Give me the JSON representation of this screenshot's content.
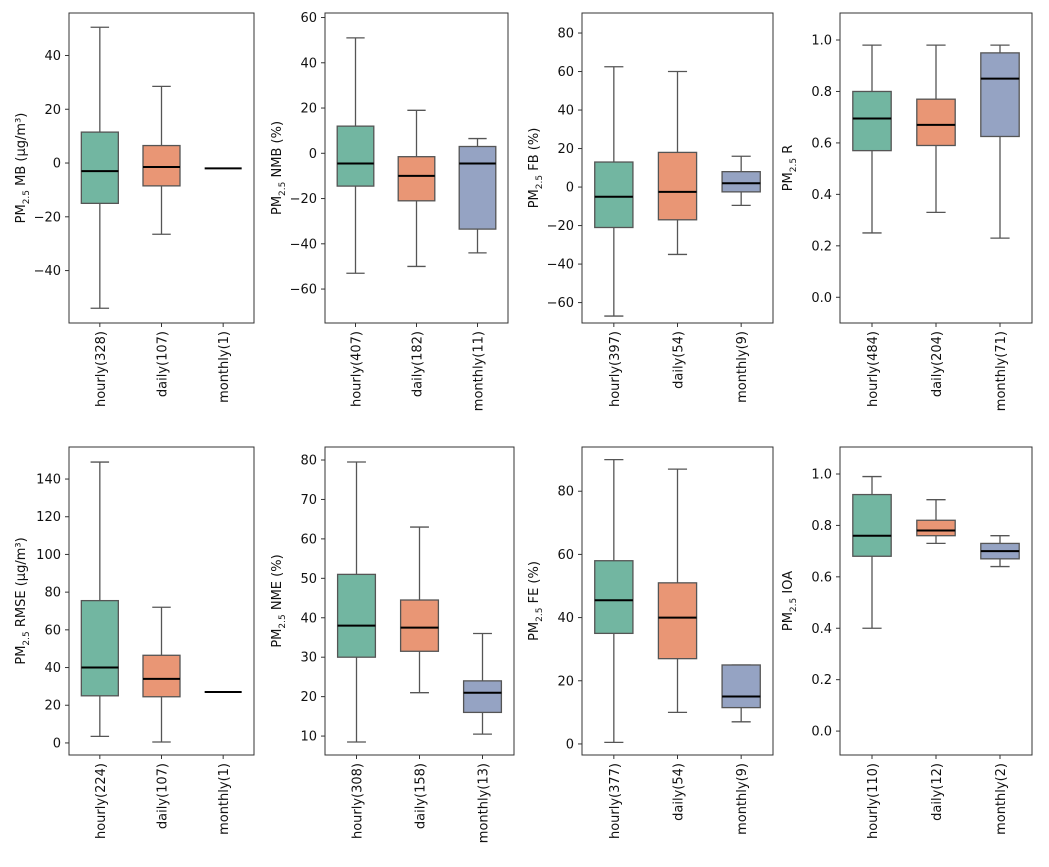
{
  "chart_data": [
    {
      "type": "box",
      "ylabel": {
        "prefix": "PM",
        "sub": "2.5",
        "rest": " MB (μg/m³)"
      },
      "ylim": [
        -59.5,
        55.8
      ],
      "yticks": [
        -40,
        -20,
        0,
        20,
        40
      ],
      "categories": [
        "hourly(328)",
        "daily(107)",
        "monthly(1)"
      ],
      "boxes": [
        {
          "whislo": -54,
          "q1": -15,
          "med": -3,
          "q3": 11.5,
          "whishi": 50.5
        },
        {
          "whislo": -26.5,
          "q1": -8.5,
          "med": -1.5,
          "q3": 6.5,
          "whishi": 28.5
        },
        {
          "whislo": -2,
          "q1": -2,
          "med": -2,
          "q3": -2,
          "whishi": -2
        }
      ]
    },
    {
      "type": "box",
      "ylabel": {
        "prefix": "PM",
        "sub": "2.5",
        "rest": " NMB (%)"
      },
      "ylim": [
        -75,
        62
      ],
      "yticks": [
        -60,
        -40,
        -20,
        0,
        20,
        40,
        60
      ],
      "categories": [
        "hourly(407)",
        "daily(182)",
        "monthly(11)"
      ],
      "boxes": [
        {
          "whislo": -53,
          "q1": -14.5,
          "med": -4.5,
          "q3": 12,
          "whishi": 51
        },
        {
          "whislo": -50,
          "q1": -21,
          "med": -10,
          "q3": -1.5,
          "whishi": 19
        },
        {
          "whislo": -44,
          "q1": -33.5,
          "med": -4.5,
          "q3": 3,
          "whishi": 6.5
        }
      ]
    },
    {
      "type": "box",
      "ylabel": {
        "prefix": "PM",
        "sub": "2.5",
        "rest": " FB (%)"
      },
      "ylim": [
        -70.6,
        90.4
      ],
      "yticks": [
        -60,
        -40,
        -20,
        0,
        20,
        40,
        60,
        80
      ],
      "categories": [
        "hourly(397)",
        "daily(54)",
        "monthly(9)"
      ],
      "boxes": [
        {
          "whislo": -67,
          "q1": -21,
          "med": -5,
          "q3": 13,
          "whishi": 62.5
        },
        {
          "whislo": -35,
          "q1": -17,
          "med": -2.5,
          "q3": 18,
          "whishi": 60
        },
        {
          "whislo": -9.5,
          "q1": -2.5,
          "med": 2,
          "q3": 8,
          "whishi": 16
        }
      ]
    },
    {
      "type": "box",
      "ylabel": {
        "prefix": "PM",
        "sub": "2.5",
        "rest": " R"
      },
      "ylim": [
        -0.1,
        1.105
      ],
      "yticks": [
        0.0,
        0.2,
        0.4,
        0.6,
        0.8,
        1.0
      ],
      "decimals": 1,
      "categories": [
        "hourly(484)",
        "daily(204)",
        "monthly(71)"
      ],
      "boxes": [
        {
          "whislo": 0.25,
          "q1": 0.57,
          "med": 0.695,
          "q3": 0.8,
          "whishi": 0.98
        },
        {
          "whislo": 0.33,
          "q1": 0.59,
          "med": 0.67,
          "q3": 0.77,
          "whishi": 0.98
        },
        {
          "whislo": 0.23,
          "q1": 0.625,
          "med": 0.85,
          "q3": 0.95,
          "whishi": 0.98
        }
      ]
    },
    {
      "type": "box",
      "ylabel": {
        "prefix": "PM",
        "sub": "2.5",
        "rest": " RMSE (μg/m³)"
      },
      "ylim": [
        -6.4,
        157
      ],
      "yticks": [
        0,
        20,
        40,
        60,
        80,
        100,
        120,
        140
      ],
      "categories": [
        "hourly(224)",
        "daily(107)",
        "monthly(1)"
      ],
      "boxes": [
        {
          "whislo": 3.5,
          "q1": 25,
          "med": 40,
          "q3": 75.5,
          "whishi": 149
        },
        {
          "whislo": 0.5,
          "q1": 24.5,
          "med": 34,
          "q3": 46.5,
          "whishi": 72
        },
        {
          "whislo": 27,
          "q1": 27,
          "med": 27,
          "q3": 27,
          "whishi": 27
        }
      ]
    },
    {
      "type": "box",
      "ylabel": {
        "prefix": "PM",
        "sub": "2.5",
        "rest": " NME (%)"
      },
      "ylim": [
        5.2,
        83.3
      ],
      "yticks": [
        10,
        20,
        30,
        40,
        50,
        60,
        70,
        80
      ],
      "categories": [
        "hourly(308)",
        "daily(158)",
        "monthly(13)"
      ],
      "boxes": [
        {
          "whislo": 8.5,
          "q1": 30,
          "med": 38,
          "q3": 51,
          "whishi": 79.5
        },
        {
          "whislo": 21,
          "q1": 31.5,
          "med": 37.5,
          "q3": 44.5,
          "whishi": 63
        },
        {
          "whislo": 10.5,
          "q1": 16,
          "med": 21,
          "q3": 24,
          "whishi": 36
        }
      ]
    },
    {
      "type": "box",
      "ylabel": {
        "prefix": "PM",
        "sub": "2.5",
        "rest": " FE (%)"
      },
      "ylim": [
        -3.5,
        94
      ],
      "yticks": [
        0,
        20,
        40,
        60,
        80
      ],
      "categories": [
        "hourly(377)",
        "daily(54)",
        "monthly(9)"
      ],
      "boxes": [
        {
          "whislo": 0.5,
          "q1": 35,
          "med": 45.5,
          "q3": 58,
          "whishi": 90
        },
        {
          "whislo": 10,
          "q1": 27,
          "med": 40,
          "q3": 51,
          "whishi": 87
        },
        {
          "whislo": 7,
          "q1": 11.5,
          "med": 15,
          "q3": 25,
          "whishi": 25
        }
      ]
    },
    {
      "type": "box",
      "ylabel": {
        "prefix": "PM",
        "sub": "2.5",
        "rest": " IOA"
      },
      "ylim": [
        -0.093,
        1.105
      ],
      "yticks": [
        0.0,
        0.2,
        0.4,
        0.6,
        0.8,
        1.0
      ],
      "decimals": 1,
      "categories": [
        "hourly(110)",
        "daily(12)",
        "monthly(2)"
      ],
      "boxes": [
        {
          "whislo": 0.4,
          "q1": 0.68,
          "med": 0.76,
          "q3": 0.92,
          "whishi": 0.99
        },
        {
          "whislo": 0.73,
          "q1": 0.76,
          "med": 0.78,
          "q3": 0.82,
          "whishi": 0.9
        },
        {
          "whislo": 0.64,
          "q1": 0.67,
          "med": 0.7,
          "q3": 0.73,
          "whishi": 0.76
        }
      ]
    }
  ],
  "colors": {
    "hourly": "#72b6a1",
    "daily": "#e99675",
    "monthly": "#95a3c3",
    "median": "#000000",
    "whisker": "#555555"
  }
}
